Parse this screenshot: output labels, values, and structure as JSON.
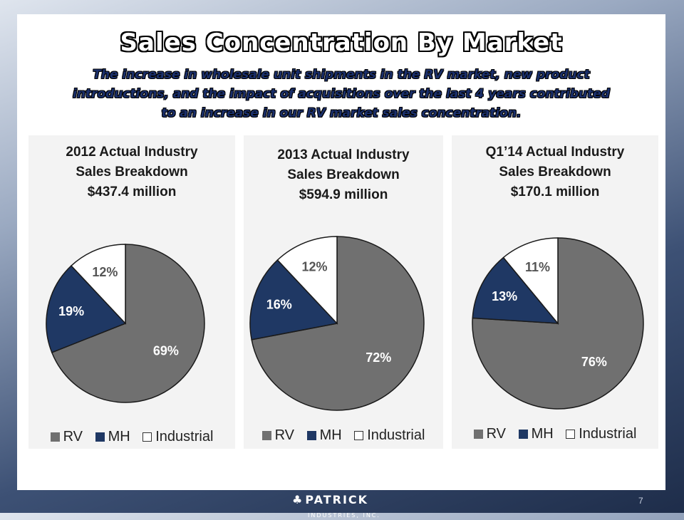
{
  "slide": {
    "title": "Sales Concentration By Market",
    "subtitle_lines": [
      "The increase in wholesale unit shipments in the RV market, new product",
      "introductions, and the impact of acquisitions over the last 4 years contributed",
      "to an increase in our RV market sales concentration."
    ],
    "page_number": "7",
    "logo": {
      "name": "PATRICK",
      "tagline": "INDUSTRIES, INC."
    }
  },
  "colors": {
    "RV": "#707070",
    "MH": "#1f3864",
    "Industrial": "#ffffff"
  },
  "legend_labels": [
    "RV",
    "MH",
    "Industrial"
  ],
  "chart_data": [
    {
      "type": "pie",
      "title_lines": [
        "2012 Actual Industry",
        "Sales Breakdown",
        "$437.4 million"
      ],
      "slices": [
        {
          "name": "RV",
          "value": 69,
          "label": "69%"
        },
        {
          "name": "MH",
          "value": 19,
          "label": "19%"
        },
        {
          "name": "Industrial",
          "value": 12,
          "label": "12%"
        }
      ],
      "legend": [
        "RV",
        "MH",
        "Industrial"
      ],
      "legend_position": "bottom"
    },
    {
      "type": "pie",
      "title_lines": [
        "2013 Actual Industry",
        "Sales Breakdown",
        "$594.9 million"
      ],
      "slices": [
        {
          "name": "RV",
          "value": 72,
          "label": "72%"
        },
        {
          "name": "MH",
          "value": 16,
          "label": "16%"
        },
        {
          "name": "Industrial",
          "value": 12,
          "label": "12%"
        }
      ],
      "legend": [
        "RV",
        "MH",
        "Industrial"
      ],
      "legend_position": "bottom"
    },
    {
      "type": "pie",
      "title_lines": [
        "Q1’14 Actual Industry",
        "Sales Breakdown",
        "$170.1 million"
      ],
      "slices": [
        {
          "name": "RV",
          "value": 76,
          "label": "76%"
        },
        {
          "name": "MH",
          "value": 13,
          "label": "13%"
        },
        {
          "name": "Industrial",
          "value": 11,
          "label": "11%"
        }
      ],
      "legend": [
        "RV",
        "MH",
        "Industrial"
      ],
      "legend_position": "bottom"
    }
  ]
}
